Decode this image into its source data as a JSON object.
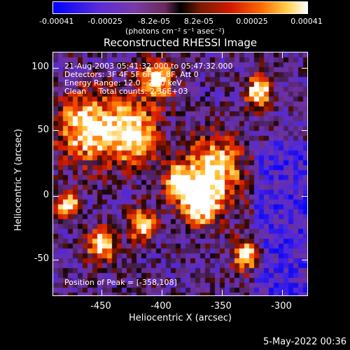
{
  "colorbar": {
    "ticks": [
      "-0.00041",
      "-0.00025",
      "-8.2e-05",
      "8.2e-05",
      "0.00025",
      "0.00041"
    ],
    "units_label": "(photons cm⁻² s⁻¹ asec⁻²)"
  },
  "title": "Reconstructed RHESSI Image",
  "overlay": {
    "time_range": "21-Aug-2003 05:41:32.000 to 05:47:32.000",
    "detectors": "Detectors: 3F 4F 5F 6F 7F 8F, Att 0",
    "energy": "Energy Range: 12.0 - 25.0 keV",
    "clean": "Clean     Total counts: 2.36E+03",
    "peak": "Position of Peak = [-358,108]"
  },
  "x_axis": {
    "label": "Heliocentric X (arcsec)",
    "ticks": [
      "-450",
      "-400",
      "-350",
      "-300"
    ]
  },
  "y_axis": {
    "label": "Heliocentric Y (arcsec)",
    "ticks": [
      "100",
      "50",
      "0",
      "-50"
    ]
  },
  "footer": {
    "date": "5-May-2022 00:36"
  }
}
